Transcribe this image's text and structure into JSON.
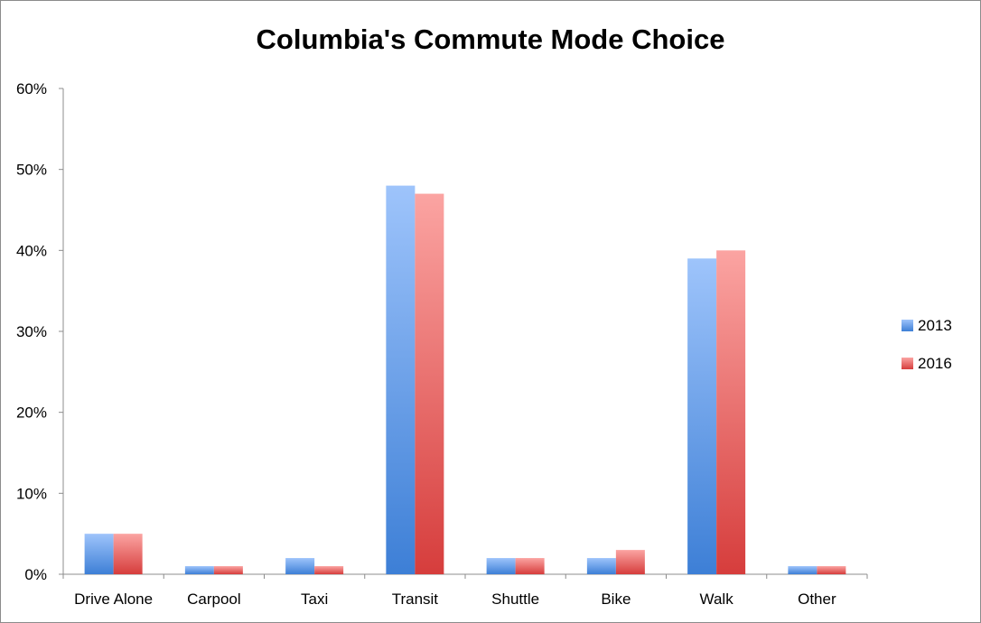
{
  "chart_data": {
    "type": "bar",
    "title": "Columbia's Commute Mode Choice",
    "xlabel": "",
    "ylabel": "",
    "categories": [
      "Drive Alone",
      "Carpool",
      "Taxi",
      "Transit",
      "Shuttle",
      "Bike",
      "Walk",
      "Other"
    ],
    "series": [
      {
        "name": "2013",
        "values": [
          5,
          1,
          2,
          48,
          2,
          2,
          39,
          1
        ],
        "color": "#4f86d9"
      },
      {
        "name": "2016",
        "values": [
          5,
          1,
          1,
          47,
          2,
          3,
          40,
          1
        ],
        "color": "#d9504f"
      }
    ],
    "ylim": [
      0,
      60
    ],
    "yticks": [
      "0%",
      "10%",
      "20%",
      "30%",
      "40%",
      "50%",
      "60%"
    ],
    "grid": false,
    "legend_position": "right"
  }
}
